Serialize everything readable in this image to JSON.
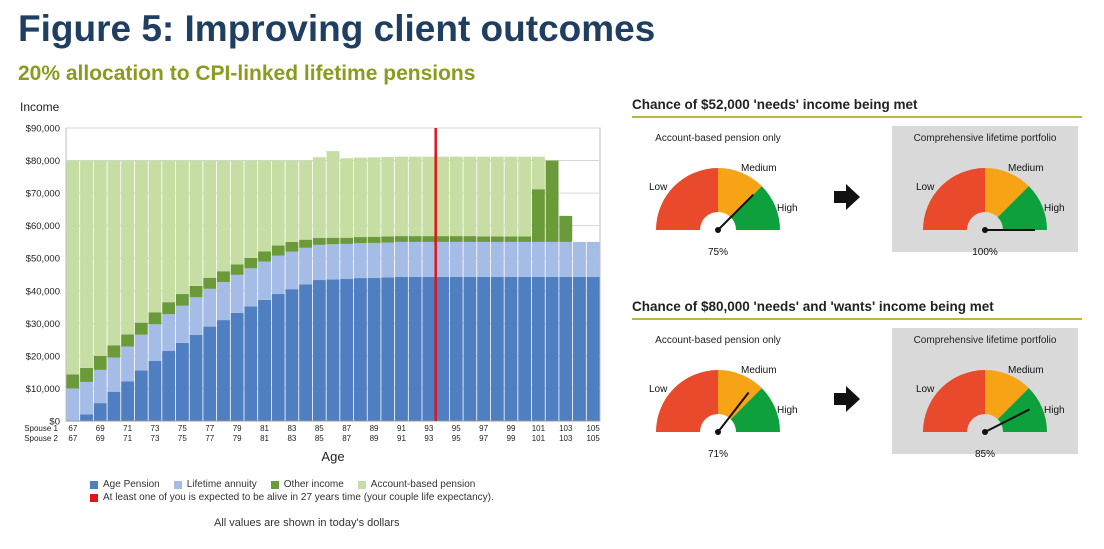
{
  "header": {
    "title": "Figure 5: Improving client outcomes",
    "subtitle": "20% allocation to CPI-linked lifetime pensions"
  },
  "chart_data": {
    "type": "bar",
    "stacked": true,
    "ylabel": "Income",
    "xlabel": "Age",
    "ylim": [
      0,
      90000
    ],
    "yticks": [
      "$0",
      "$10,000",
      "$20,000",
      "$30,000",
      "$40,000",
      "$50,000",
      "$60,000",
      "$70,000",
      "$80,000",
      "$90,000"
    ],
    "row_labels": [
      "Spouse 1",
      "Spouse 2"
    ],
    "x_tick_labels": [
      "67",
      "69",
      "71",
      "73",
      "75",
      "77",
      "79",
      "81",
      "83",
      "85",
      "87",
      "89",
      "91",
      "93",
      "95",
      "97",
      "99",
      "101",
      "103",
      "105"
    ],
    "grid": true,
    "age_start": 67,
    "age_end": 106,
    "vline_age": 94,
    "series": [
      {
        "name": "Age Pension",
        "color": "#4f7fc0",
        "values": [
          0,
          2000,
          5500,
          9000,
          12200,
          15500,
          18500,
          21500,
          24000,
          26500,
          29000,
          31000,
          33200,
          35200,
          37200,
          39000,
          40500,
          42000,
          43300,
          43500,
          43700,
          43900,
          44000,
          44100,
          44300,
          44300,
          44300,
          44300,
          44300,
          44300,
          44300,
          44300,
          44300,
          44300,
          44300,
          44300,
          44300,
          44300,
          44300,
          44300
        ]
      },
      {
        "name": "Lifetime annuity",
        "color": "#a5bde6",
        "values": [
          10000,
          10000,
          10200,
          10500,
          10700,
          11000,
          11200,
          11300,
          11400,
          11500,
          11600,
          11700,
          11700,
          11700,
          11800,
          11800,
          11500,
          11200,
          10800,
          10800,
          10700,
          10700,
          10700,
          10700,
          10700,
          10700,
          10700,
          10700,
          10700,
          10700,
          10700,
          10700,
          10700,
          10700,
          10700,
          10700,
          10700,
          10700,
          10700,
          10700
        ]
      },
      {
        "name": "Other income",
        "color": "#6b9a3a",
        "values": [
          4300,
          4300,
          4300,
          3700,
          3700,
          3700,
          3700,
          3700,
          3600,
          3500,
          3400,
          3300,
          3200,
          3200,
          3100,
          3100,
          3000,
          2500,
          2100,
          2000,
          1900,
          1900,
          1900,
          1900,
          1800,
          1800,
          1800,
          1800,
          1800,
          1800,
          1700,
          1700,
          1700,
          1700,
          16200,
          25000,
          8000,
          0,
          0,
          0
        ]
      },
      {
        "name": "Account-based pension",
        "color": "#c6dea4",
        "values": [
          65700,
          63700,
          60000,
          56800,
          53400,
          49800,
          46600,
          43500,
          41000,
          38500,
          36000,
          34000,
          31900,
          29900,
          27900,
          26100,
          25000,
          24300,
          24800,
          26600,
          24400,
          24400,
          24400,
          24400,
          24400,
          24400,
          24400,
          24400,
          24400,
          24400,
          24500,
          24500,
          24500,
          24500,
          10000,
          0,
          0,
          0,
          0,
          0
        ]
      }
    ],
    "annotations": [
      "At least one of you is expected to be alive in 27 years time (your couple life expectancy)."
    ]
  },
  "footnote": "All values are shown in today's dollars",
  "sections": [
    {
      "title": "Chance of $52,000 'needs' income being met",
      "panels": [
        {
          "title": "Account-based pension only",
          "value": "75%",
          "fraction": 0.75,
          "grey": false
        },
        {
          "title": "Comprehensive lifetime portfolio",
          "value": "100%",
          "fraction": 1.0,
          "grey": true
        }
      ]
    },
    {
      "title": "Chance of $80,000 'needs' and 'wants' income being met",
      "panels": [
        {
          "title": "Account-based pension only",
          "value": "71%",
          "fraction": 0.71,
          "grey": false
        },
        {
          "title": "Comprehensive lifetime portfolio",
          "value": "85%",
          "fraction": 0.85,
          "grey": true
        }
      ]
    }
  ],
  "gauge": {
    "labels": {
      "low": "Low",
      "medium": "Medium",
      "high": "High"
    },
    "colors": {
      "low": "#e84a2b",
      "medium": "#f6a416",
      "high": "#0ea03c",
      "needle": "#111111"
    }
  },
  "colors": {
    "vline": "#e0141b",
    "title": "#1f3f62",
    "subtitle": "#8c9a1e",
    "rule": "#b9b73a",
    "panel_grey": "#d9d9d9"
  },
  "icons": {
    "arrow": "right-arrow-icon"
  }
}
